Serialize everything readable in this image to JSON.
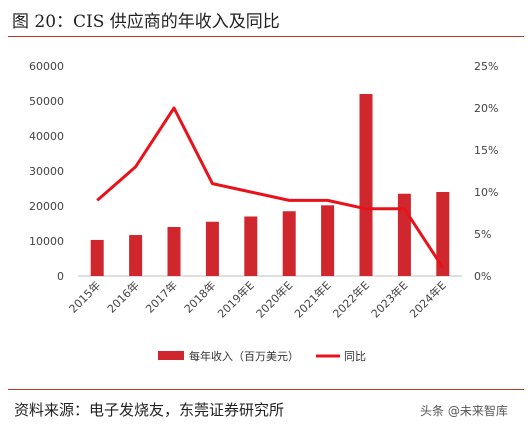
{
  "header": {
    "title": "图 20：CIS 供应商的年收入及同比"
  },
  "footer": {
    "source_label": "资料来源：",
    "source_text": "电子发烧友，东莞证券研究所",
    "watermark": "头条 @未来智库"
  },
  "chart_data": {
    "type": "bar",
    "categories": [
      "2015年",
      "2016年",
      "2017年",
      "2018年",
      "2019年E",
      "2020年E",
      "2021年E",
      "2022年E",
      "2023年E",
      "2024年E"
    ],
    "series": [
      {
        "name": "每年收入（百万美元）",
        "type": "bar",
        "axis": "left",
        "color": "#d0262d",
        "values": [
          10300,
          11700,
          14000,
          15500,
          17000,
          18500,
          20200,
          52000,
          23500,
          24000
        ]
      },
      {
        "name": "同比",
        "type": "line",
        "axis": "right",
        "color": "#e8121b",
        "values": [
          9,
          13,
          20,
          11,
          10,
          9,
          9,
          8,
          8,
          1
        ]
      }
    ],
    "y_left": {
      "ylim": [
        0,
        60000
      ],
      "ticks": [
        "0",
        "10000",
        "20000",
        "30000",
        "40000",
        "50000",
        "60000"
      ]
    },
    "y_right": {
      "ylim": [
        0,
        25
      ],
      "ticks": [
        "0%",
        "5%",
        "10%",
        "15%",
        "20%",
        "25%"
      ]
    },
    "legend": {
      "placement": "bottom-center"
    },
    "grid": false
  }
}
